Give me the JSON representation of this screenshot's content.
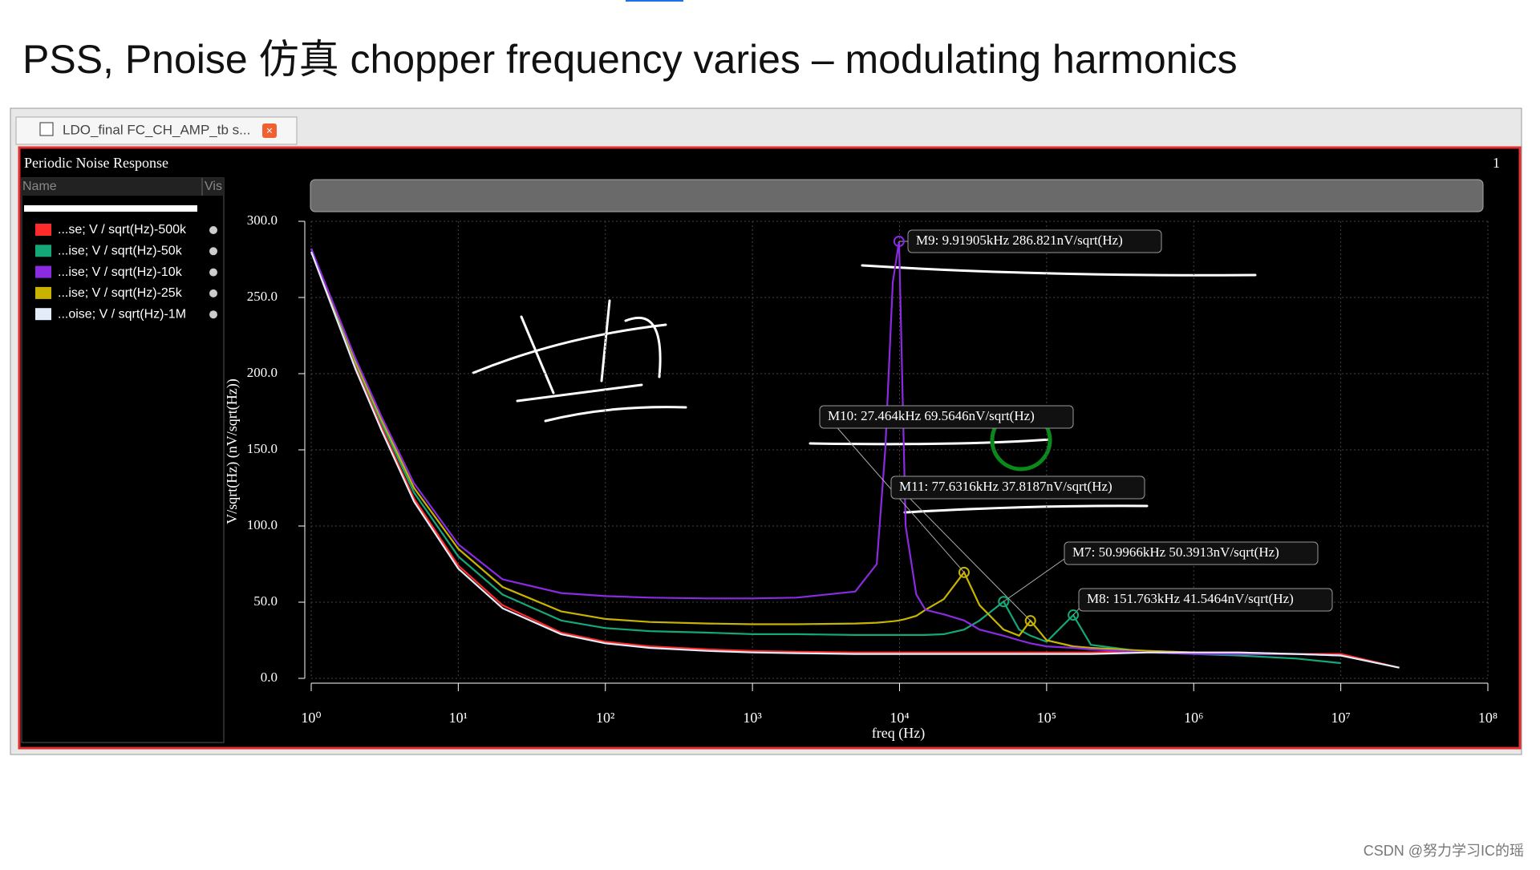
{
  "slide_title": "PSS, Pnoise 仿真 chopper frequency varies – modulating harmonics",
  "tab_title": "LDO_final FC_CH_AMP_tb s...",
  "watermark": "CSDN @努力学习IC的瑶",
  "chart_data": {
    "type": "line",
    "title": "Periodic Noise Response",
    "subplot_number": "1",
    "legend_header": [
      "Name",
      "Vis"
    ],
    "x_label": "freq (Hz)",
    "y_label": "V/sqrt(Hz) (nV/sqrt(Hz))",
    "x_log": true,
    "grid": true,
    "xlim": [
      1,
      100000000
    ],
    "ylim": [
      0,
      300
    ],
    "xticks": [
      {
        "value": 1,
        "label": "10⁰"
      },
      {
        "value": 10,
        "label": "10¹"
      },
      {
        "value": 100,
        "label": "10²"
      },
      {
        "value": 1000,
        "label": "10³"
      },
      {
        "value": 10000,
        "label": "10⁴"
      },
      {
        "value": 100000,
        "label": "10⁵"
      },
      {
        "value": 1000000,
        "label": "10⁶"
      },
      {
        "value": 10000000,
        "label": "10⁷"
      },
      {
        "value": 100000000,
        "label": "10⁸"
      }
    ],
    "yticks": [
      {
        "value": 0,
        "label": "0.0"
      },
      {
        "value": 50,
        "label": "50.0"
      },
      {
        "value": 100,
        "label": "100.0"
      },
      {
        "value": 150,
        "label": "150.0"
      },
      {
        "value": 200,
        "label": "200.0"
      },
      {
        "value": 250,
        "label": "250.0"
      },
      {
        "value": 300,
        "label": "300.0"
      }
    ],
    "x": [
      1,
      2,
      3,
      5,
      10,
      20,
      50,
      100,
      200,
      500,
      1000,
      2000,
      5000,
      7000,
      8000,
      9000,
      9919.05,
      11000,
      13000,
      15000,
      20000,
      27464,
      35000,
      50996.6,
      65000,
      77631.6,
      100000,
      151763,
      200000,
      500000,
      1000000,
      2000000,
      5000000,
      10000000,
      25000000
    ],
    "series": [
      {
        "name": "...se; V / sqrt(Hz)-500k",
        "color": "#ff2a2a",
        "values": [
          282,
          205,
          165,
          118,
          74,
          48,
          30,
          24,
          21,
          19,
          18,
          17.5,
          17,
          17,
          17,
          17,
          17,
          17,
          17,
          17,
          17,
          17,
          17,
          17,
          17,
          17,
          17,
          17,
          17,
          18,
          17,
          17,
          16,
          16,
          7
        ]
      },
      {
        "name": "...ise; V / sqrt(Hz)-50k",
        "color": "#14a878",
        "values": [
          282,
          207,
          168,
          122,
          80,
          55,
          38,
          33,
          31,
          30,
          29,
          29,
          28.5,
          28.5,
          28.5,
          28.5,
          28.5,
          28.5,
          28.5,
          28.5,
          29,
          32,
          38,
          50.3913,
          32,
          28,
          24,
          41.5464,
          22,
          17,
          16,
          15,
          13,
          10,
          null
        ]
      },
      {
        "name": "...ise; V / sqrt(Hz)-10k",
        "color": "#8a2be2",
        "values": [
          282,
          210,
          172,
          128,
          88,
          65,
          56,
          54,
          53,
          52.5,
          52.5,
          53,
          57,
          75,
          150,
          260,
          286.821,
          100,
          55,
          45,
          42,
          38,
          32,
          28,
          25,
          23,
          21,
          20,
          19,
          17,
          16,
          16,
          16,
          15,
          null
        ]
      },
      {
        "name": "...ise; V / sqrt(Hz)-25k",
        "color": "#c8b400",
        "values": [
          282,
          208,
          170,
          125,
          85,
          60,
          44,
          39,
          37,
          36,
          35.5,
          35.5,
          36,
          36.5,
          37,
          37.5,
          38,
          39,
          41,
          45,
          52,
          69.5646,
          48,
          32,
          28,
          37.8187,
          25,
          21,
          20,
          18,
          17,
          16,
          16,
          15,
          null
        ]
      },
      {
        "name": "...oise; V / sqrt(Hz)-1M",
        "color": "#e4ecfa",
        "values": [
          280,
          203,
          163,
          116,
          72,
          46,
          29,
          23,
          20,
          18,
          17,
          16.5,
          16,
          16,
          16,
          16,
          16,
          16,
          16,
          16,
          16,
          16,
          16,
          16,
          16,
          16,
          16,
          16,
          16,
          17,
          17,
          17,
          16,
          15,
          7
        ]
      }
    ],
    "markers": [
      {
        "text": "M9: 9.91905kHz 286.821nV/sqrt(Hz)",
        "x": 9919.05,
        "y": 286.821,
        "color": "#8a2be2"
      },
      {
        "text": "M10: 27.464kHz 69.5646nV/sqrt(Hz)",
        "x": 27464,
        "y": 69.5646,
        "color": "#c8b400"
      },
      {
        "text": "M11: 77.6316kHz 37.8187nV/sqrt(Hz)",
        "x": 77631.6,
        "y": 37.8187,
        "color": "#c8b400"
      },
      {
        "text": "M7: 50.9966kHz 50.3913nV/sqrt(Hz)",
        "x": 50996.6,
        "y": 50.3913,
        "color": "#14a878"
      },
      {
        "text": "M8: 151.763kHz 41.5464nV/sqrt(Hz)",
        "x": 151763,
        "y": 41.5464,
        "color": "#14a878"
      }
    ]
  }
}
